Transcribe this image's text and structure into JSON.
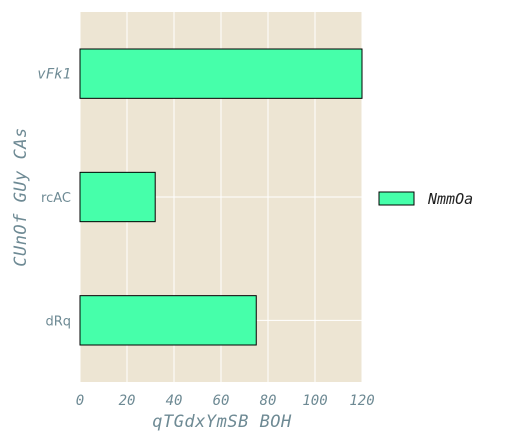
{
  "chart_data": {
    "type": "bar",
    "orientation": "horizontal",
    "categories": [
      "vFk1",
      "rcAC",
      "dRq"
    ],
    "series": [
      {
        "name": "NmmOa",
        "values": [
          120,
          32,
          75
        ],
        "color": "#46ffaa"
      }
    ],
    "xlabel": "qTGdxYmSB BOH",
    "ylabel": "CUnOf GUy CAs",
    "xlim": [
      0,
      120
    ],
    "xticks": [
      "0",
      "20",
      "40",
      "60",
      "80",
      "100",
      "120"
    ],
    "grid": true,
    "legend_position": "right",
    "colors": {
      "plot_background": "#ede5d3",
      "grid": "#ffffff",
      "bar_edge": "#000000",
      "tick_text": "#6e8a94"
    }
  }
}
